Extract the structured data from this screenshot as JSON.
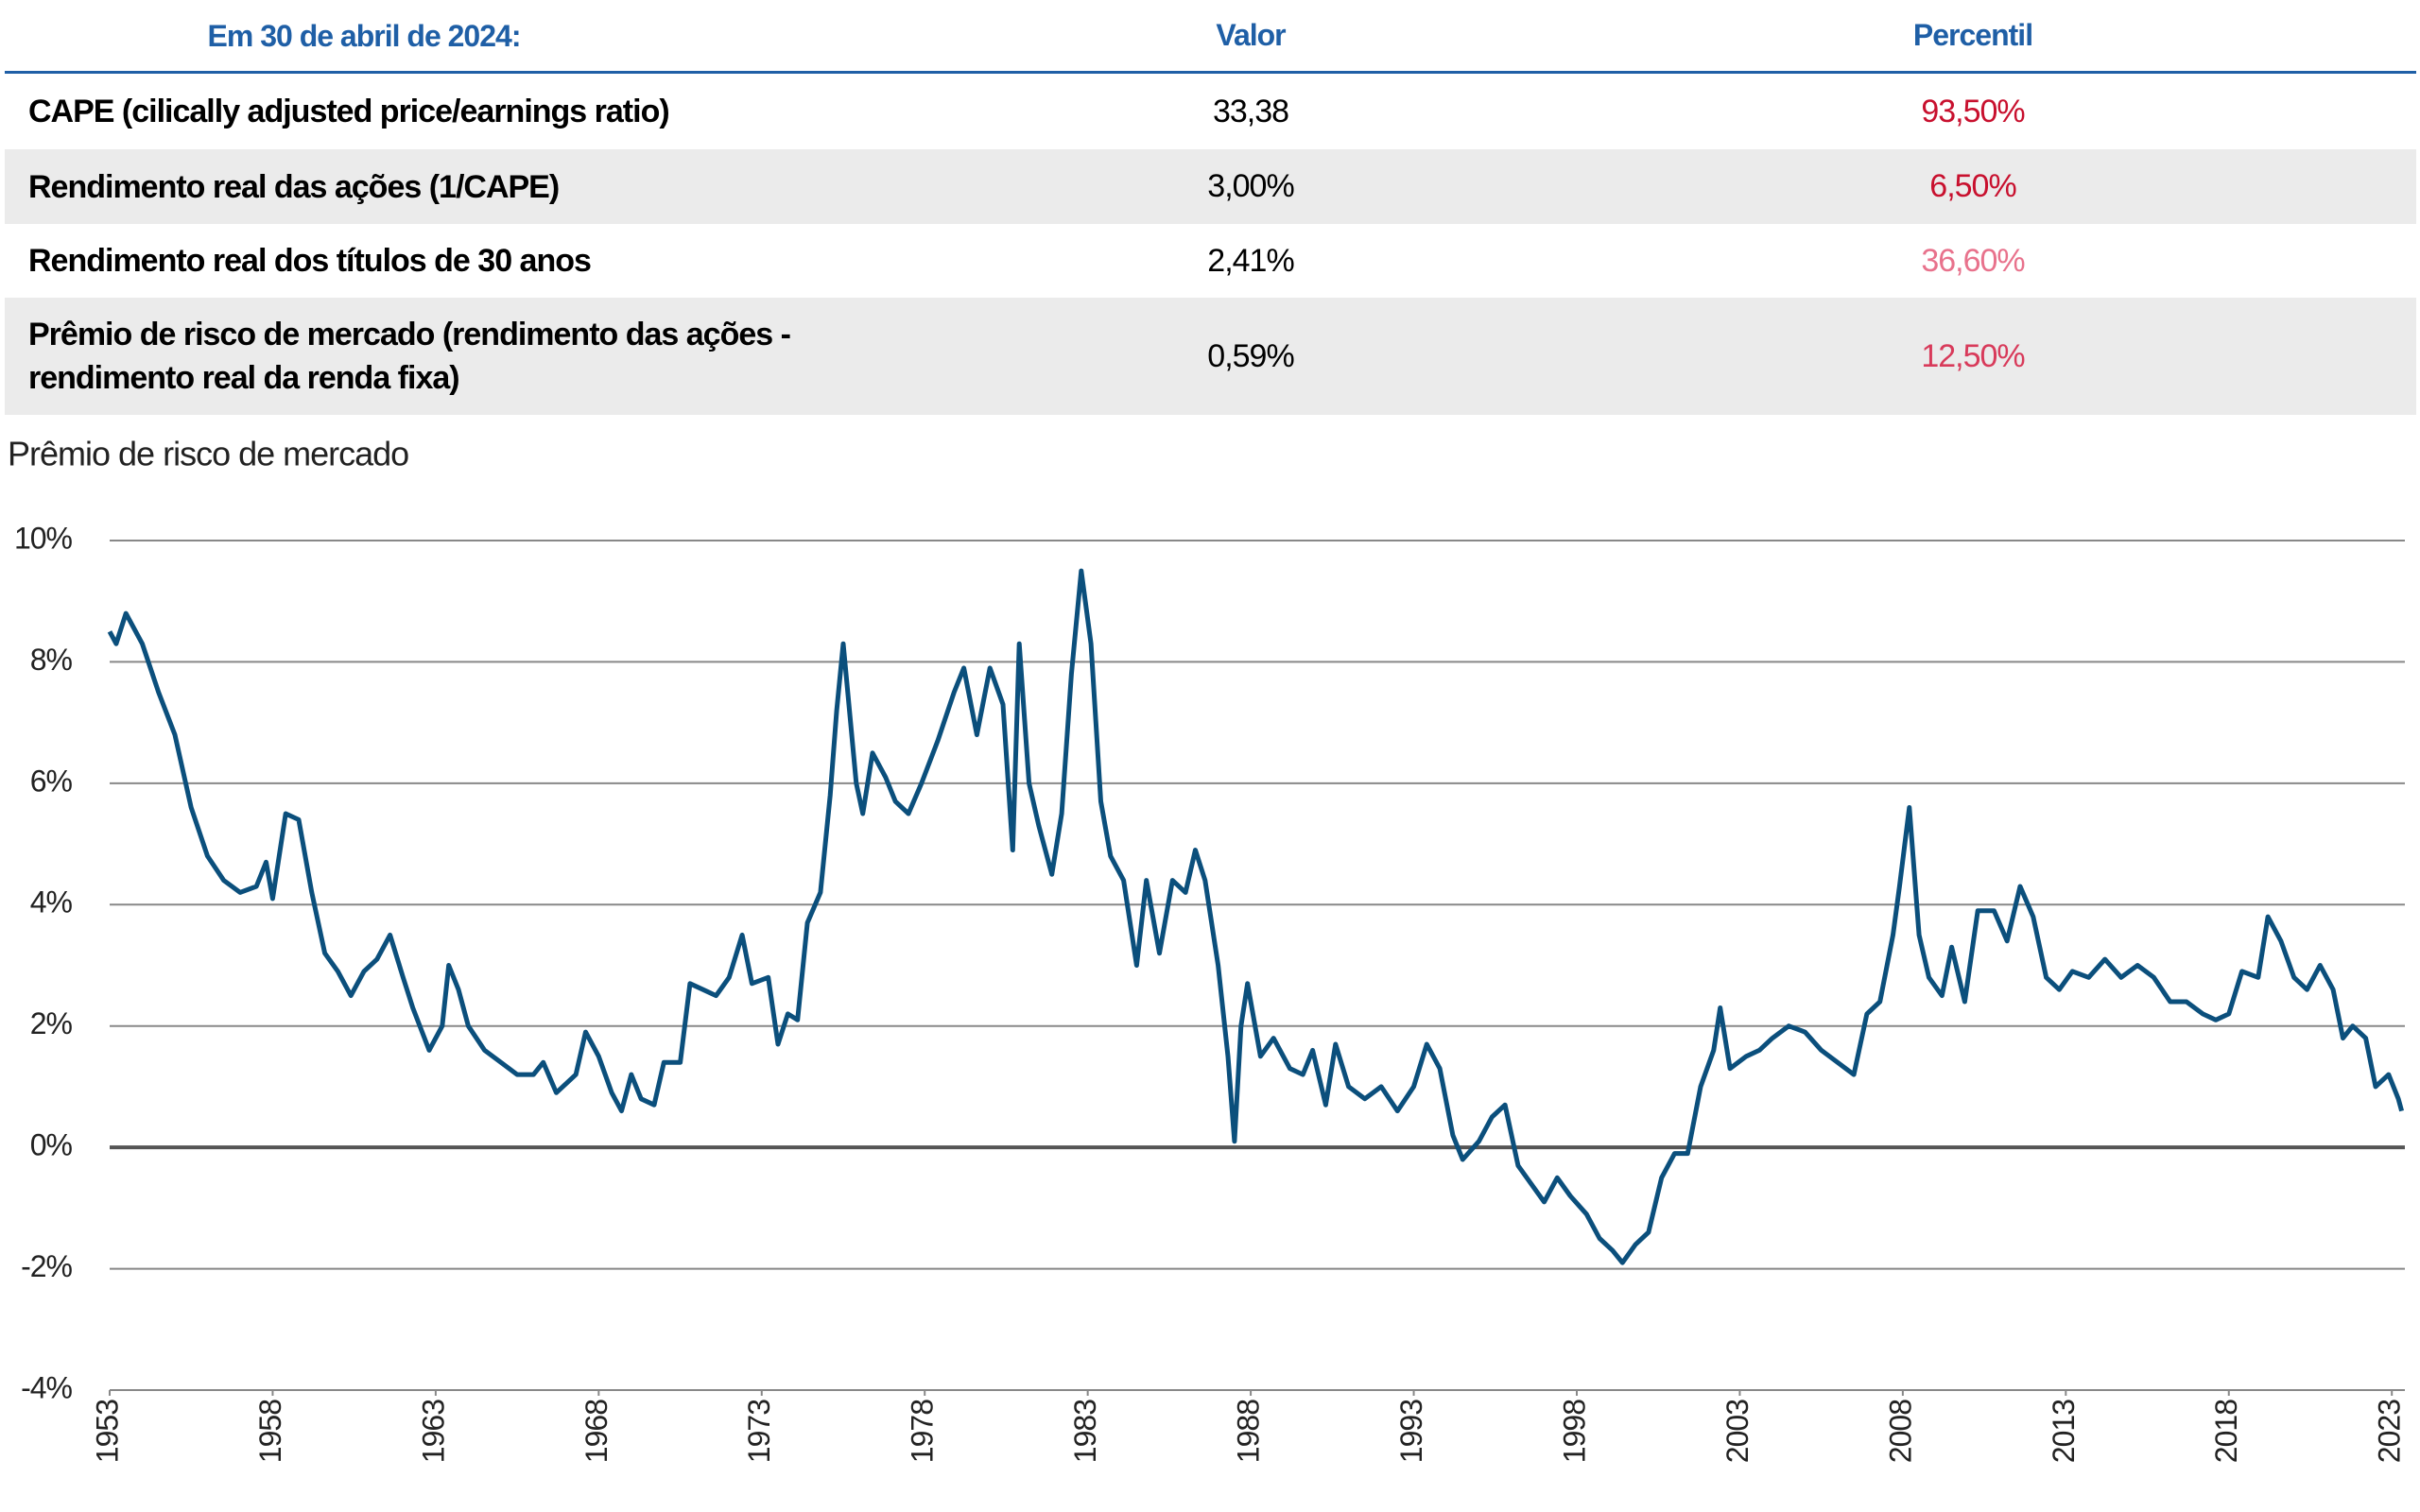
{
  "table": {
    "header": [
      "Em 30 de abril de 2024:",
      "Valor",
      "Percentil"
    ],
    "header_color": "#1f5fa6",
    "rows": [
      {
        "label": "CAPE (cilically adjusted price/earnings ratio)",
        "value": "33,38",
        "percentile": "93,50%",
        "color": "#c8102e"
      },
      {
        "label": "Rendimento real das ações (1/CAPE)",
        "value": "3,00%",
        "percentile": "6,50%",
        "color": "#c8102e"
      },
      {
        "label": "Rendimento real dos títulos de 30 anos",
        "value": "2,41%",
        "percentile": "36,60%",
        "color": "#e8728c"
      },
      {
        "label": "Prêmio de risco de mercado (rendimento das ações - rendimento real da renda fixa)",
        "value": "0,59%",
        "percentile": "12,50%",
        "color": "#d83a5a"
      }
    ]
  },
  "chart_data": {
    "type": "line",
    "title": "Prêmio de risco de mercado",
    "color": "#0b4f7c",
    "grid": true,
    "xlim": [
      1953,
      2023.4
    ],
    "xticks": [
      1953,
      1958,
      1963,
      1968,
      1973,
      1978,
      1983,
      1988,
      1993,
      1998,
      2003,
      2008,
      2013,
      2018,
      2023
    ],
    "ylim": [
      -4,
      10
    ],
    "yticks": [
      {
        "value": -4,
        "label": "-4%"
      },
      {
        "value": -2,
        "label": "-2%"
      },
      {
        "value": 0,
        "label": "0%"
      },
      {
        "value": 2,
        "label": "2%"
      },
      {
        "value": 4,
        "label": "4%"
      },
      {
        "value": 6,
        "label": "6%"
      },
      {
        "value": 8,
        "label": "8%"
      },
      {
        "value": 10,
        "label": "10%"
      }
    ],
    "x": [
      1953.0,
      1953.2,
      1953.5,
      1954,
      1954.5,
      1955,
      1955.5,
      1956,
      1956.5,
      1957,
      1957.5,
      1957.8,
      1958,
      1958.4,
      1958.8,
      1959.2,
      1959.6,
      1960,
      1960.4,
      1960.8,
      1961.2,
      1961.6,
      1962,
      1962.3,
      1962.8,
      1963.2,
      1963.4,
      1963.7,
      1964,
      1964.5,
      1965,
      1965.5,
      1966,
      1966.3,
      1966.7,
      1967.3,
      1967.6,
      1968,
      1968.4,
      1968.7,
      1969,
      1969.3,
      1969.7,
      1970,
      1970.5,
      1970.8,
      1971.2,
      1971.6,
      1972,
      1972.4,
      1972.7,
      1973.2,
      1973.5,
      1973.8,
      1974.1,
      1974.4,
      1974.8,
      1975.1,
      1975.3,
      1975.5,
      1975.9,
      1976.1,
      1976.4,
      1976.8,
      1977.1,
      1977.5,
      1977.9,
      1978.4,
      1978.9,
      1979.2,
      1979.6,
      1980,
      1980.4,
      1980.7,
      1980.9,
      1981.2,
      1981.5,
      1981.9,
      1982.2,
      1982.5,
      1982.8,
      1983.1,
      1983.4,
      1983.7,
      1984.1,
      1984.5,
      1984.8,
      1985.2,
      1985.6,
      1986,
      1986.3,
      1986.6,
      1987,
      1987.3,
      1987.5,
      1987.7,
      1987.9,
      1988.3,
      1988.7,
      1989.2,
      1989.6,
      1989.9,
      1990.3,
      1990.6,
      1991,
      1991.5,
      1992,
      1992.5,
      1993,
      1993.4,
      1993.8,
      1994.2,
      1994.5,
      1995,
      1995.4,
      1995.8,
      1996.2,
      1996.6,
      1997,
      1997.4,
      1997.8,
      1998.3,
      1998.7,
      1999.1,
      1999.4,
      1999.8,
      2000.2,
      2000.6,
      2001,
      2001.4,
      2001.8,
      2002.2,
      2002.4,
      2002.7,
      2003.2,
      2003.6,
      2004,
      2004.5,
      2005,
      2005.5,
      2006,
      2006.5,
      2006.9,
      2007.3,
      2007.7,
      2007.9,
      2008.2,
      2008.5,
      2008.8,
      2009.2,
      2009.5,
      2009.9,
      2010.3,
      2010.8,
      2011.2,
      2011.6,
      2012,
      2012.4,
      2012.8,
      2013.2,
      2013.7,
      2014.2,
      2014.7,
      2015.2,
      2015.7,
      2016.2,
      2016.7,
      2017.2,
      2017.6,
      2018,
      2018.4,
      2018.9,
      2019.2,
      2019.6,
      2020,
      2020.4,
      2020.8,
      2021.2,
      2021.5,
      2021.8,
      2022.2,
      2022.5,
      2022.9,
      2023.2,
      2023.3
    ],
    "values": [
      8.5,
      8.3,
      8.8,
      8.3,
      7.5,
      6.8,
      5.6,
      4.8,
      4.4,
      4.2,
      4.3,
      4.7,
      4.1,
      5.5,
      5.4,
      4.2,
      3.2,
      2.9,
      2.5,
      2.9,
      3.1,
      3.5,
      2.8,
      2.3,
      1.6,
      2.0,
      3.0,
      2.6,
      2.0,
      1.6,
      1.4,
      1.2,
      1.2,
      1.4,
      0.9,
      1.2,
      1.9,
      1.5,
      0.9,
      0.6,
      1.2,
      0.8,
      0.7,
      1.4,
      1.4,
      2.7,
      2.6,
      2.5,
      2.8,
      3.5,
      2.7,
      2.8,
      1.7,
      2.2,
      2.1,
      3.7,
      4.2,
      5.8,
      7.2,
      8.3,
      6.0,
      5.5,
      6.5,
      6.1,
      5.7,
      5.5,
      6.0,
      6.7,
      7.5,
      7.9,
      6.8,
      7.9,
      7.3,
      4.9,
      8.3,
      6.0,
      5.3,
      4.5,
      5.5,
      7.8,
      9.5,
      8.3,
      5.7,
      4.8,
      4.4,
      3.0,
      4.4,
      3.2,
      4.4,
      4.2,
      4.9,
      4.4,
      3.0,
      1.5,
      0.1,
      2.0,
      2.7,
      1.5,
      1.8,
      1.3,
      1.2,
      1.6,
      0.7,
      1.7,
      1.0,
      0.8,
      1.0,
      0.6,
      1.0,
      1.7,
      1.3,
      0.2,
      -0.2,
      0.1,
      0.5,
      0.7,
      -0.3,
      -0.6,
      -0.9,
      -0.5,
      -0.8,
      -1.1,
      -1.5,
      -1.7,
      -1.9,
      -1.6,
      -1.4,
      -0.5,
      -0.1,
      -0.1,
      1.0,
      1.6,
      2.3,
      1.3,
      1.5,
      1.6,
      1.8,
      2.0,
      1.9,
      1.6,
      1.4,
      1.2,
      2.2,
      2.4,
      3.5,
      4.3,
      5.6,
      3.5,
      2.8,
      2.5,
      3.3,
      2.4,
      3.9,
      3.9,
      3.4,
      4.3,
      3.8,
      2.8,
      2.6,
      2.9,
      2.8,
      3.1,
      2.8,
      3.0,
      2.8,
      2.4,
      2.4,
      2.2,
      2.1,
      2.2,
      2.9,
      2.8,
      3.8,
      3.4,
      2.8,
      2.6,
      3.0,
      2.6,
      1.8,
      2.0,
      1.8,
      1.0,
      1.2,
      0.8,
      0.6
    ]
  }
}
